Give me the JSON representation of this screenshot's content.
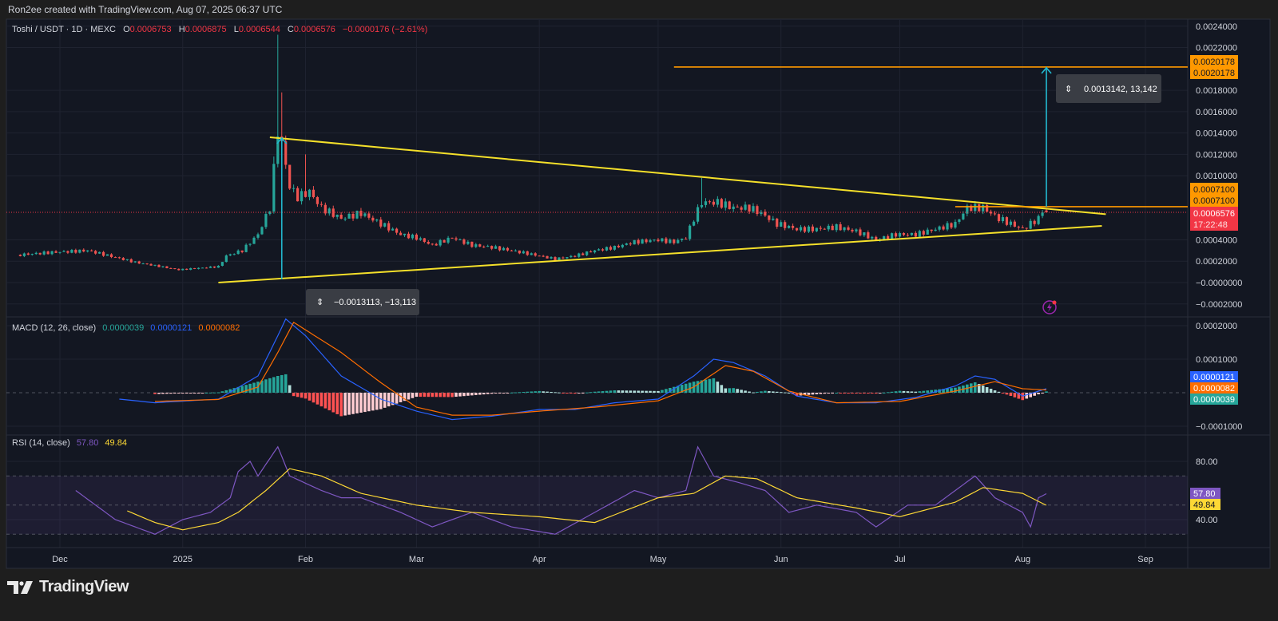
{
  "header": {
    "credit": "Ron2ee created with TradingView.com, Aug 07, 2025 06:37 UTC"
  },
  "legend": {
    "symbol": "Toshi / USDT · 1D · MEXC",
    "o_label": "O",
    "o": "0.0006753",
    "h_label": "H",
    "h": "0.0006875",
    "l_label": "L",
    "l": "0.0006544",
    "c_label": "C",
    "c": "0.0006576",
    "change": "−0.0000176 (−2.61%)"
  },
  "macd_legend": {
    "title": "MACD (12, 26, close)",
    "hist": "0.0000039",
    "macd": "0.0000121",
    "signal": "0.0000082"
  },
  "rsi_legend": {
    "title": "RSI (14, close)",
    "rsi": "57.80",
    "ma": "49.84"
  },
  "price_axis": [
    "0.0024000",
    "0.0022000",
    "0.0018000",
    "0.0016000",
    "0.0014000",
    "0.0012000",
    "0.0010000",
    "0.0004000",
    "0.0002000",
    "−0.0000000",
    "−0.0002000"
  ],
  "macd_axis": [
    "0.0002000",
    "0.0001000",
    "−0.0001000"
  ],
  "rsi_axis": [
    "80.00",
    "40.00"
  ],
  "time_axis": [
    {
      "label": "Dec",
      "date": "2024-12-01"
    },
    {
      "label": "2025",
      "date": "2025-01-01"
    },
    {
      "label": "Feb",
      "date": "2025-02-01"
    },
    {
      "label": "Mar",
      "date": "2025-03-01"
    },
    {
      "label": "Apr",
      "date": "2025-04-01"
    },
    {
      "label": "May",
      "date": "2025-05-01"
    },
    {
      "label": "Jun",
      "date": "2025-06-01"
    },
    {
      "label": "Jul",
      "date": "2025-07-01"
    },
    {
      "label": "Aug",
      "date": "2025-08-01"
    },
    {
      "label": "Sep",
      "date": "2025-09-01"
    }
  ],
  "badges": {
    "target_a": "0.0020178",
    "target_b": "0.0020178",
    "resist_a": "0.0007100",
    "resist_b": "0.0007100",
    "last_price": "0.0006576",
    "countdown": "17:22:48",
    "macd": "0.0000121",
    "signal": "0.0000082",
    "hist": "0.0000039",
    "rsi": "57.80",
    "rsi_ma": "49.84"
  },
  "measures": {
    "down": {
      "label": "−0.0013113, −13,113",
      "date": "2025-01-26",
      "from": 0.00136,
      "to": 3e-05
    },
    "up": {
      "label": "0.0013142, 13,142",
      "date": "2025-08-07",
      "from": 0.00071,
      "to": 0.0020178
    }
  },
  "colors": {
    "up": "#26a69a",
    "down": "#ef5350",
    "trend": "#f5e02a",
    "level": "#ff9800",
    "measure": "#22b8cf",
    "macd": "#2962ff",
    "signal": "#ff6d00",
    "rsi": "#7e57c2",
    "rsi_ma": "#fdd835",
    "bg": "#131722",
    "grid": "#1f2330",
    "text": "#d1d4dc"
  },
  "footer": {
    "brand": "TradingView"
  },
  "chart_data": {
    "type": "candlestick",
    "symbol": "Toshi / USDT",
    "interval": "1D",
    "exchange": "MEXC",
    "ylim": [
      -0.00026,
      0.00245
    ],
    "last_candle": {
      "date": "2025-08-07",
      "open": 0.0006753,
      "high": 0.0006875,
      "low": 0.0006544,
      "close": 0.0006576
    },
    "close_keypoints": [
      [
        "2024-11-21",
        0.00026
      ],
      [
        "2024-11-28",
        0.00028
      ],
      [
        "2024-12-08",
        0.0003
      ],
      [
        "2024-12-20",
        0.00019
      ],
      [
        "2024-12-31",
        0.00012
      ],
      [
        "2025-01-10",
        0.00015
      ],
      [
        "2025-01-12",
        0.00025
      ],
      [
        "2025-01-16",
        0.0003
      ],
      [
        "2025-01-20",
        0.00045
      ],
      [
        "2025-01-23",
        0.0007
      ],
      [
        "2025-01-25",
        0.00142
      ],
      [
        "2025-01-26",
        0.0013
      ],
      [
        "2025-01-27",
        0.0011
      ],
      [
        "2025-01-28",
        0.0009
      ],
      [
        "2025-01-30",
        0.0008
      ],
      [
        "2025-02-02",
        0.00085
      ],
      [
        "2025-02-05",
        0.0007
      ],
      [
        "2025-02-10",
        0.0006
      ],
      [
        "2025-02-15",
        0.00065
      ],
      [
        "2025-02-20",
        0.00055
      ],
      [
        "2025-02-25",
        0.00045
      ],
      [
        "2025-03-01",
        0.00042
      ],
      [
        "2025-03-05",
        0.00035
      ],
      [
        "2025-03-10",
        0.00042
      ],
      [
        "2025-03-15",
        0.00035
      ],
      [
        "2025-03-20",
        0.00033
      ],
      [
        "2025-03-25",
        0.0003
      ],
      [
        "2025-04-01",
        0.00025
      ],
      [
        "2025-04-05",
        0.00022
      ],
      [
        "2025-04-10",
        0.00025
      ],
      [
        "2025-04-15",
        0.0003
      ],
      [
        "2025-04-20",
        0.00033
      ],
      [
        "2025-04-25",
        0.00038
      ],
      [
        "2025-05-01",
        0.0004
      ],
      [
        "2025-05-05",
        0.00038
      ],
      [
        "2025-05-08",
        0.00042
      ],
      [
        "2025-05-10",
        0.0006
      ],
      [
        "2025-05-12",
        0.00075
      ],
      [
        "2025-05-16",
        0.00075
      ],
      [
        "2025-05-20",
        0.0007
      ],
      [
        "2025-05-24",
        0.0007
      ],
      [
        "2025-05-27",
        0.00065
      ],
      [
        "2025-05-31",
        0.00055
      ],
      [
        "2025-06-05",
        0.0005
      ],
      [
        "2025-06-10",
        0.0005
      ],
      [
        "2025-06-15",
        0.00052
      ],
      [
        "2025-06-20",
        0.00048
      ],
      [
        "2025-06-25",
        0.0004
      ],
      [
        "2025-06-30",
        0.00045
      ],
      [
        "2025-07-05",
        0.00045
      ],
      [
        "2025-07-10",
        0.0005
      ],
      [
        "2025-07-15",
        0.00055
      ],
      [
        "2025-07-18",
        0.0007
      ],
      [
        "2025-07-22",
        0.0007
      ],
      [
        "2025-07-26",
        0.0006
      ],
      [
        "2025-08-01",
        0.0005
      ],
      [
        "2025-08-03",
        0.00055
      ],
      [
        "2025-08-05",
        0.0006
      ],
      [
        "2025-08-06",
        0.00067
      ],
      [
        "2025-08-07",
        0.0006576
      ]
    ],
    "wick_highs": [
      [
        "2025-01-24",
        0.00118
      ],
      [
        "2025-01-25",
        0.00232
      ],
      [
        "2025-01-26",
        0.00178
      ],
      [
        "2025-02-01",
        0.0012
      ],
      [
        "2025-05-12",
        0.00098
      ]
    ],
    "trendlines": [
      {
        "name": "upper",
        "from": [
          "2025-01-23",
          0.00136
        ],
        "to": [
          "2025-08-22",
          0.00064
        ]
      },
      {
        "name": "lower",
        "from": [
          "2025-01-10",
          0.0
        ],
        "to": [
          "2025-08-21",
          0.00053
        ]
      }
    ],
    "levels": [
      {
        "value": 0.0020178,
        "from": "2025-05-05"
      },
      {
        "value": 0.00071,
        "from": "2025-07-15"
      }
    ],
    "macd": {
      "params": "12, 26, close",
      "macd_keypoints": [
        [
          "2024-12-16",
          -1.9e-05
        ],
        [
          "2024-12-25",
          -3e-05
        ],
        [
          "2025-01-10",
          -1.9e-05
        ],
        [
          "2025-01-20",
          5e-05
        ],
        [
          "2025-01-25",
          0.00017
        ],
        [
          "2025-01-27",
          0.00022
        ],
        [
          "2025-02-01",
          0.00017
        ],
        [
          "2025-02-10",
          5e-05
        ],
        [
          "2025-02-20",
          -1.9e-05
        ],
        [
          "2025-03-01",
          -5.5e-05
        ],
        [
          "2025-03-10",
          -8e-05
        ],
        [
          "2025-03-20",
          -7e-05
        ],
        [
          "2025-04-01",
          -5e-05
        ],
        [
          "2025-04-10",
          -5e-05
        ],
        [
          "2025-04-20",
          -3e-05
        ],
        [
          "2025-05-01",
          -1.9e-05
        ],
        [
          "2025-05-10",
          5e-05
        ],
        [
          "2025-05-15",
          0.0001
        ],
        [
          "2025-05-20",
          9e-05
        ],
        [
          "2025-05-28",
          5e-05
        ],
        [
          "2025-06-05",
          -1e-05
        ],
        [
          "2025-06-15",
          -3e-05
        ],
        [
          "2025-06-25",
          -3e-05
        ],
        [
          "2025-07-05",
          -1.4e-05
        ],
        [
          "2025-07-15",
          2e-05
        ],
        [
          "2025-07-20",
          5e-05
        ],
        [
          "2025-07-25",
          4e-05
        ],
        [
          "2025-08-01",
          -1e-05
        ],
        [
          "2025-08-07",
          1.21e-05
        ]
      ],
      "signal_keypoints": [
        [
          "2024-12-25",
          -2.6e-05
        ],
        [
          "2025-01-10",
          -2e-05
        ],
        [
          "2025-01-20",
          1.7e-05
        ],
        [
          "2025-01-25",
          0.00012
        ],
        [
          "2025-01-29",
          0.00021
        ],
        [
          "2025-02-10",
          0.00012
        ],
        [
          "2025-02-20",
          3e-05
        ],
        [
          "2025-03-01",
          -4.3e-05
        ],
        [
          "2025-03-10",
          -6.7e-05
        ],
        [
          "2025-03-20",
          -6.7e-05
        ],
        [
          "2025-04-01",
          -5.5e-05
        ],
        [
          "2025-04-15",
          -4.3e-05
        ],
        [
          "2025-05-01",
          -2.4e-05
        ],
        [
          "2025-05-10",
          1.7e-05
        ],
        [
          "2025-05-18",
          8.1e-05
        ],
        [
          "2025-05-25",
          6.4e-05
        ],
        [
          "2025-06-03",
          5e-06
        ],
        [
          "2025-06-15",
          -3e-05
        ],
        [
          "2025-07-01",
          -2.6e-05
        ],
        [
          "2025-07-15",
          5e-06
        ],
        [
          "2025-07-25",
          3.3e-05
        ],
        [
          "2025-08-01",
          1.2e-05
        ],
        [
          "2025-08-07",
          8.2e-06
        ]
      ],
      "ylim": [
        -0.000125,
        0.00021
      ]
    },
    "rsi": {
      "params": "14, close",
      "bands": [
        30,
        50,
        70
      ],
      "rsi_keypoints": [
        [
          "2024-12-05",
          60
        ],
        [
          "2024-12-10",
          50
        ],
        [
          "2024-12-15",
          40
        ],
        [
          "2024-12-20",
          35
        ],
        [
          "2024-12-25",
          30
        ],
        [
          "2025-01-01",
          40
        ],
        [
          "2025-01-08",
          45
        ],
        [
          "2025-01-13",
          55
        ],
        [
          "2025-01-15",
          73
        ],
        [
          "2025-01-18",
          80
        ],
        [
          "2025-01-20",
          70
        ],
        [
          "2025-01-25",
          90
        ],
        [
          "2025-01-28",
          70
        ],
        [
          "2025-02-01",
          65
        ],
        [
          "2025-02-05",
          60
        ],
        [
          "2025-02-10",
          55
        ],
        [
          "2025-02-15",
          55
        ],
        [
          "2025-02-25",
          45
        ],
        [
          "2025-03-05",
          35
        ],
        [
          "2025-03-15",
          45
        ],
        [
          "2025-03-25",
          35
        ],
        [
          "2025-04-05",
          30
        ],
        [
          "2025-04-15",
          45
        ],
        [
          "2025-04-25",
          60
        ],
        [
          "2025-05-01",
          55
        ],
        [
          "2025-05-08",
          60
        ],
        [
          "2025-05-11",
          90
        ],
        [
          "2025-05-15",
          70
        ],
        [
          "2025-05-22",
          65
        ],
        [
          "2025-05-28",
          60
        ],
        [
          "2025-06-03",
          45
        ],
        [
          "2025-06-10",
          50
        ],
        [
          "2025-06-20",
          45
        ],
        [
          "2025-06-25",
          35
        ],
        [
          "2025-07-03",
          50
        ],
        [
          "2025-07-10",
          50
        ],
        [
          "2025-07-15",
          60
        ],
        [
          "2025-07-20",
          70
        ],
        [
          "2025-07-25",
          55
        ],
        [
          "2025-08-01",
          45
        ],
        [
          "2025-08-03",
          35
        ],
        [
          "2025-08-05",
          55
        ],
        [
          "2025-08-07",
          57.8
        ]
      ],
      "ma_keypoints": [
        [
          "2024-12-18",
          46
        ],
        [
          "2024-12-25",
          38
        ],
        [
          "2025-01-01",
          33
        ],
        [
          "2025-01-10",
          38
        ],
        [
          "2025-01-15",
          45
        ],
        [
          "2025-01-22",
          60
        ],
        [
          "2025-01-28",
          75
        ],
        [
          "2025-02-05",
          70
        ],
        [
          "2025-02-15",
          58
        ],
        [
          "2025-03-01",
          50
        ],
        [
          "2025-03-15",
          45
        ],
        [
          "2025-04-01",
          42
        ],
        [
          "2025-04-15",
          38
        ],
        [
          "2025-05-01",
          55
        ],
        [
          "2025-05-10",
          58
        ],
        [
          "2025-05-18",
          70
        ],
        [
          "2025-05-26",
          68
        ],
        [
          "2025-06-05",
          55
        ],
        [
          "2025-06-20",
          48
        ],
        [
          "2025-07-01",
          42
        ],
        [
          "2025-07-15",
          52
        ],
        [
          "2025-07-22",
          62
        ],
        [
          "2025-08-01",
          58
        ],
        [
          "2025-08-07",
          49.84
        ]
      ],
      "ylim": [
        20,
        100
      ]
    }
  }
}
